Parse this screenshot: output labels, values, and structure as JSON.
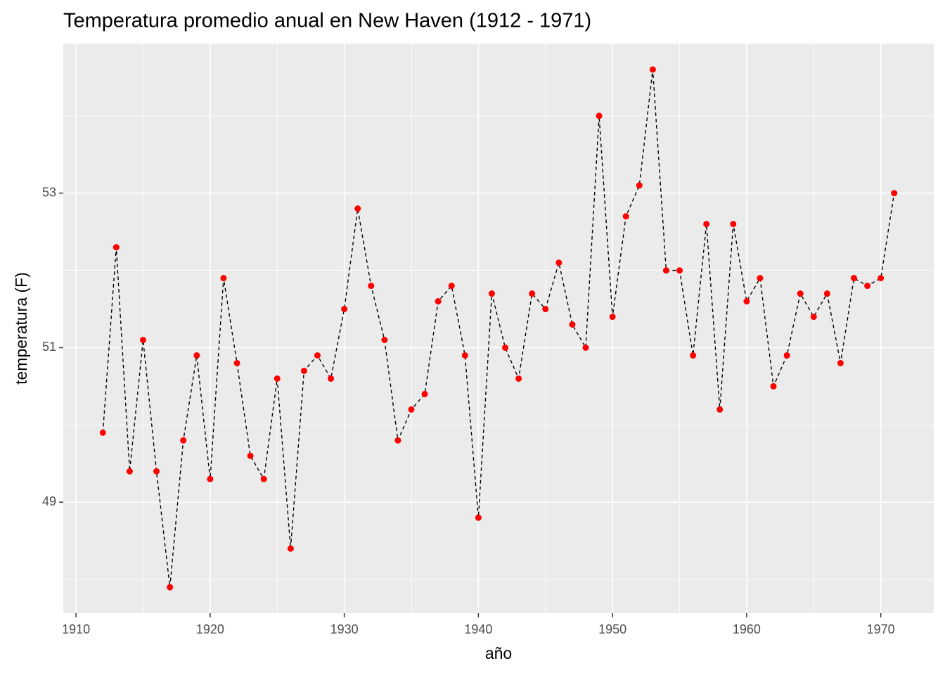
{
  "chart_data": {
    "type": "line",
    "title": "Temperatura promedio anual en New Haven (1912 - 1971)",
    "x_label": "año",
    "y_label": "temperatura (F)",
    "x": [
      1912,
      1913,
      1914,
      1915,
      1916,
      1917,
      1918,
      1919,
      1920,
      1921,
      1922,
      1923,
      1924,
      1925,
      1926,
      1927,
      1928,
      1929,
      1930,
      1931,
      1932,
      1933,
      1934,
      1935,
      1936,
      1937,
      1938,
      1939,
      1940,
      1941,
      1942,
      1943,
      1944,
      1945,
      1946,
      1947,
      1948,
      1949,
      1950,
      1951,
      1952,
      1953,
      1954,
      1955,
      1956,
      1957,
      1958,
      1959,
      1960,
      1961,
      1962,
      1963,
      1964,
      1965,
      1966,
      1967,
      1968,
      1969,
      1970,
      1971
    ],
    "series": [
      {
        "name": "temperatura",
        "color": "#ff0000",
        "line_color": "#000000",
        "values": [
          49.9,
          52.3,
          49.4,
          51.1,
          49.4,
          47.9,
          49.8,
          50.9,
          49.3,
          51.9,
          50.8,
          49.6,
          49.3,
          50.6,
          48.4,
          50.7,
          50.9,
          50.6,
          51.5,
          52.8,
          51.8,
          51.1,
          49.8,
          50.2,
          50.4,
          51.6,
          51.8,
          50.9,
          48.8,
          51.7,
          51.0,
          50.6,
          51.7,
          51.5,
          52.1,
          51.3,
          51.0,
          54.0,
          51.4,
          52.7,
          53.1,
          54.6,
          52.0,
          52.0,
          50.9,
          52.6,
          50.2,
          52.6,
          51.6,
          51.9,
          50.5,
          50.9,
          51.7,
          51.4,
          51.7,
          50.8,
          51.9,
          51.8,
          51.9,
          53.0
        ]
      }
    ],
    "xlim": [
      1909.05,
      1973.95
    ],
    "xticks": [
      1910,
      1920,
      1930,
      1940,
      1950,
      1960,
      1970
    ],
    "ylim": [
      47.565,
      54.935
    ],
    "yticks": [
      49,
      51,
      53
    ],
    "grid": true
  }
}
